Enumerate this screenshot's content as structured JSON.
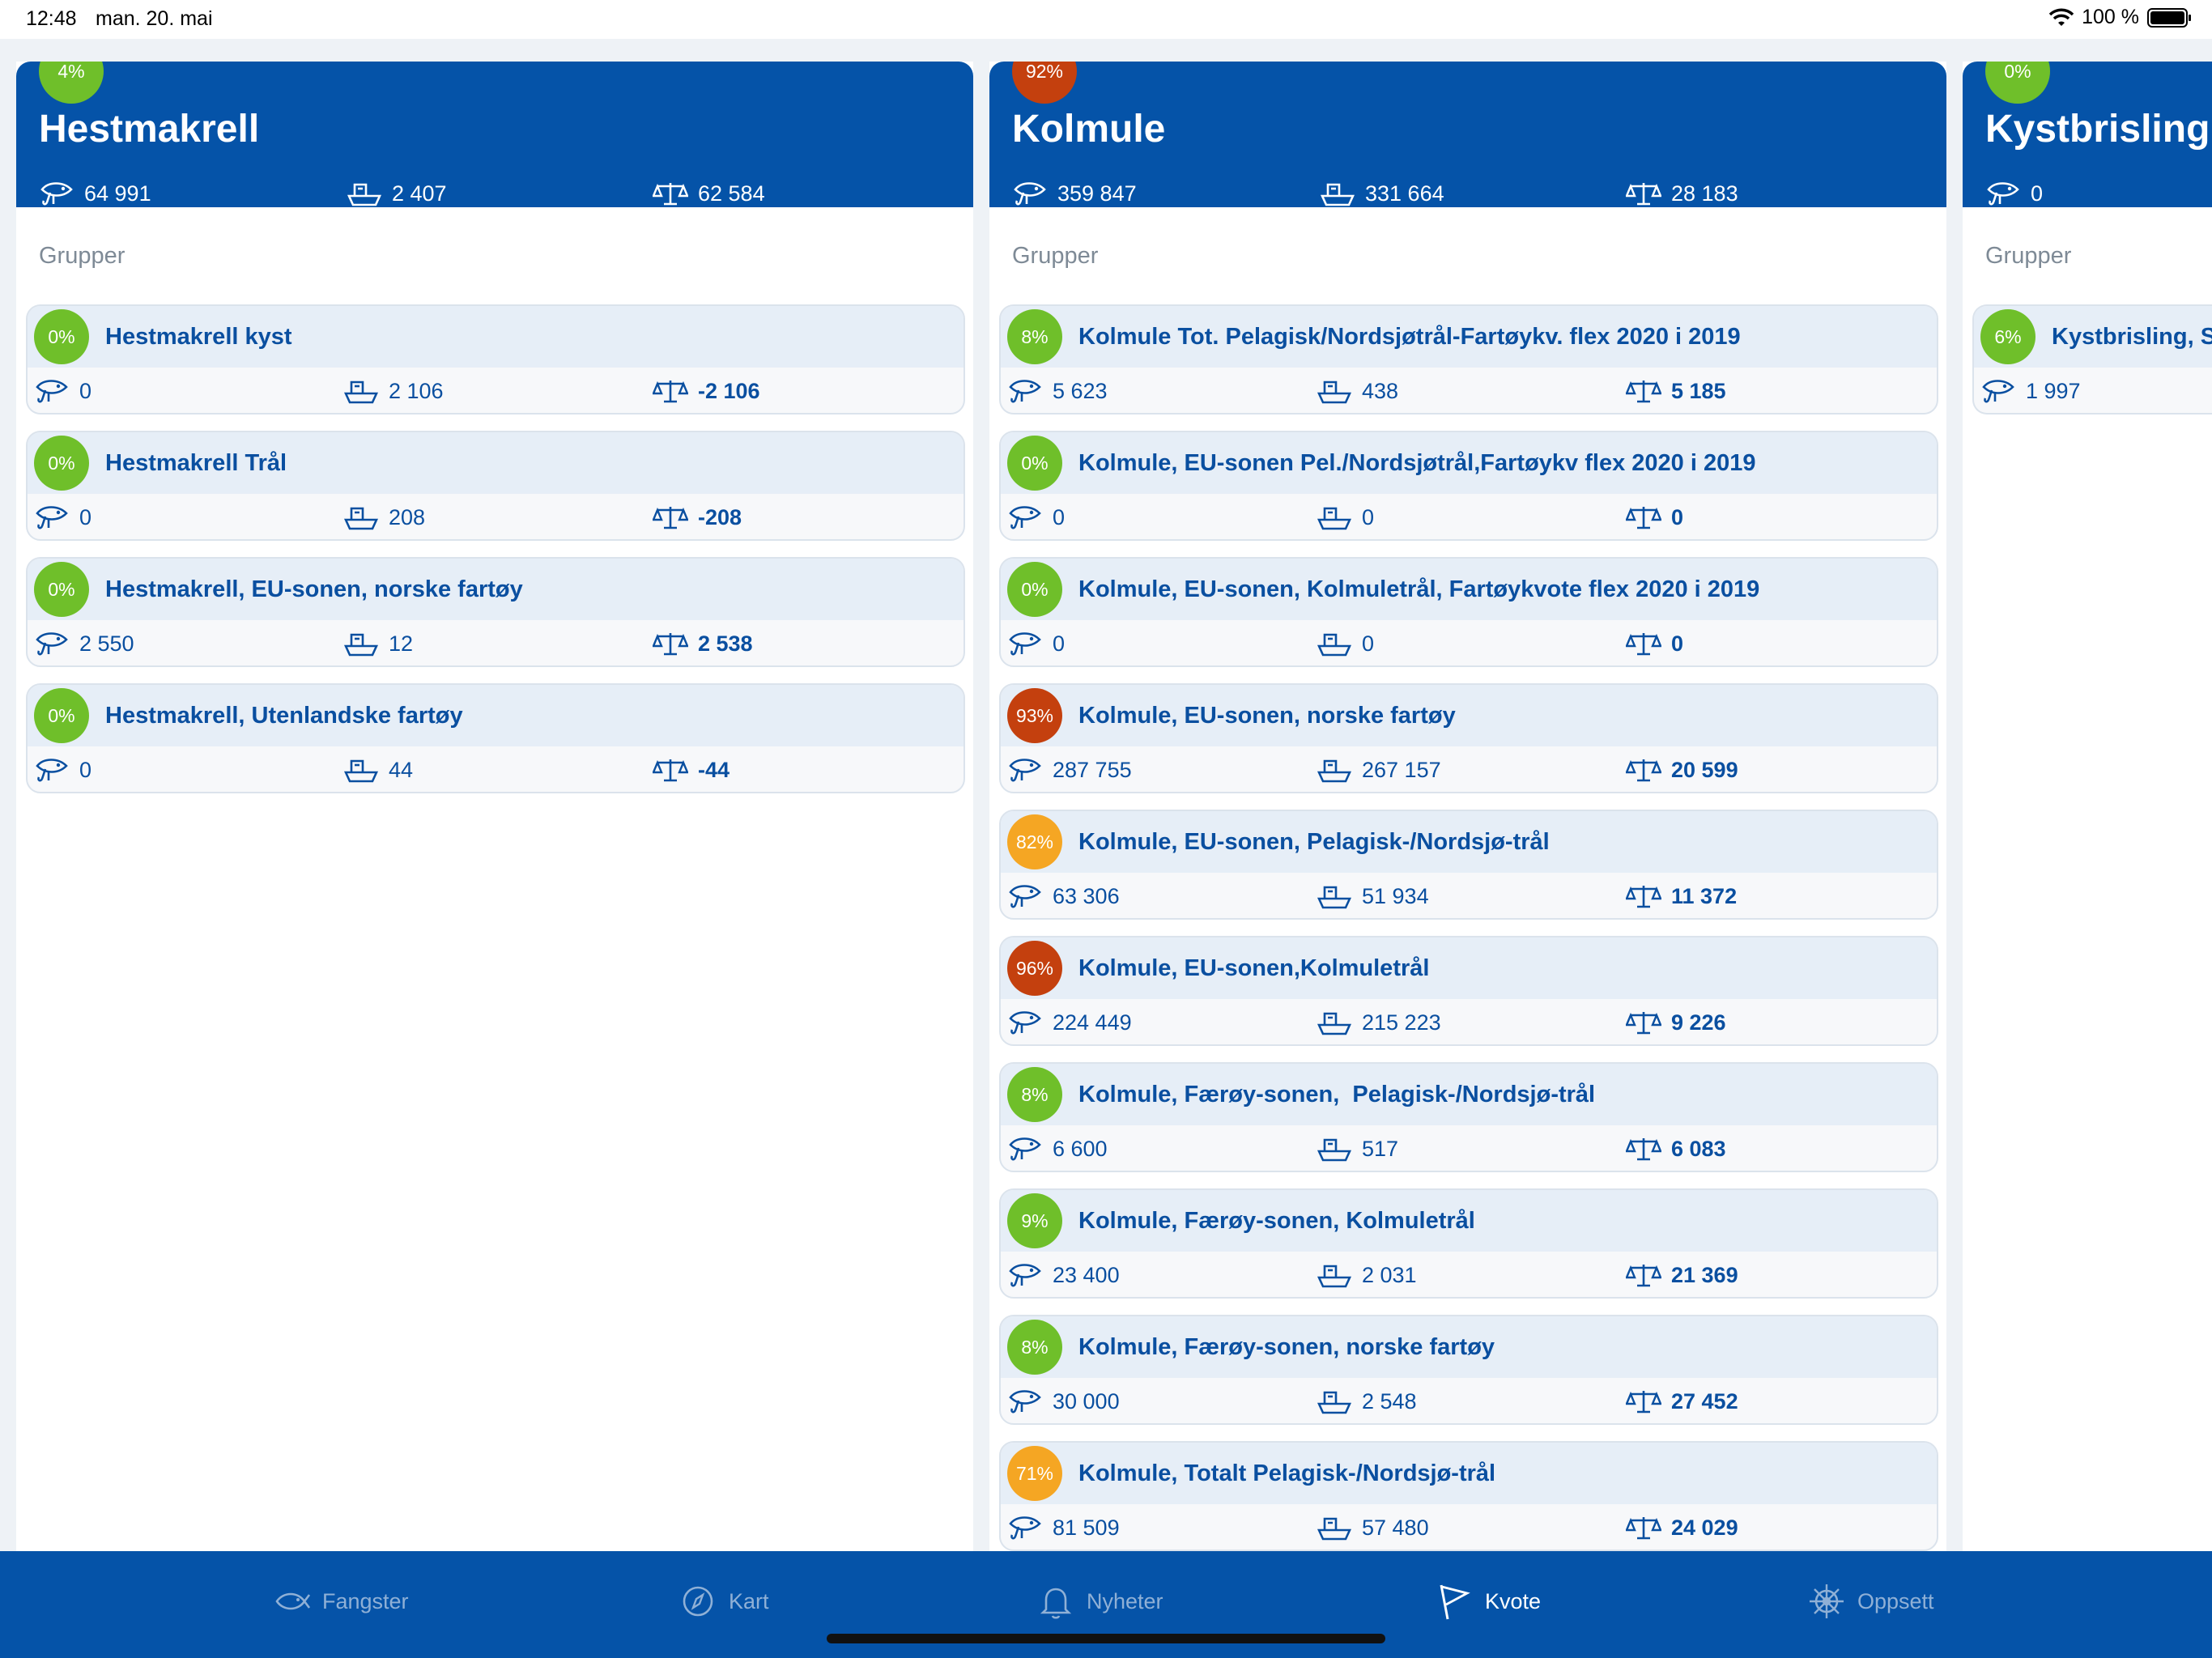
{
  "status_bar": {
    "time": "12:48",
    "date": "man. 20. mai",
    "battery": "100 %"
  },
  "columns": [
    {
      "title": "Hestmakrell",
      "percent": "4%",
      "badge_color": "#6fbf2a",
      "stats": {
        "catch": "64 991",
        "boat": "2 407",
        "rest": "62 584"
      },
      "groups_label": "Grupper",
      "groups": [
        {
          "name": "Hestmakrell kyst",
          "percent": "0%",
          "color": "#6fbf2a",
          "catch": "0",
          "boat": "2 106",
          "rest": "-2 106"
        },
        {
          "name": "Hestmakrell Trål",
          "percent": "0%",
          "color": "#6fbf2a",
          "catch": "0",
          "boat": "208",
          "rest": "-208"
        },
        {
          "name": "Hestmakrell, EU-sonen, norske fartøy",
          "percent": "0%",
          "color": "#6fbf2a",
          "catch": "2 550",
          "boat": "12",
          "rest": "2 538"
        },
        {
          "name": "Hestmakrell, Utenlandske fartøy",
          "percent": "0%",
          "color": "#6fbf2a",
          "catch": "0",
          "boat": "44",
          "rest": "-44"
        }
      ]
    },
    {
      "title": "Kolmule",
      "percent": "92%",
      "badge_color": "#c4400e",
      "stats": {
        "catch": "359 847",
        "boat": "331 664",
        "rest": "28 183"
      },
      "groups_label": "Grupper",
      "groups": [
        {
          "name": "Kolmule Tot. Pelagisk/Nordsjøtrål-Fartøykv. flex 2020 i 2019",
          "percent": "8%",
          "color": "#6fbf2a",
          "catch": "5 623",
          "boat": "438",
          "rest": "5 185"
        },
        {
          "name": "Kolmule, EU-sonen Pel./Nordsjøtrål,Fartøykv flex 2020 i 2019",
          "percent": "0%",
          "color": "#6fbf2a",
          "catch": "0",
          "boat": "0",
          "rest": "0"
        },
        {
          "name": "Kolmule, EU-sonen, Kolmuletrål, Fartøykvote flex 2020 i 2019",
          "percent": "0%",
          "color": "#6fbf2a",
          "catch": "0",
          "boat": "0",
          "rest": "0"
        },
        {
          "name": "Kolmule, EU-sonen, norske fartøy",
          "percent": "93%",
          "color": "#c4400e",
          "catch": "287 755",
          "boat": "267 157",
          "rest": "20 599"
        },
        {
          "name": "Kolmule, EU-sonen, Pelagisk-/Nordsjø-trål",
          "percent": "82%",
          "color": "#f5a623",
          "catch": "63 306",
          "boat": "51 934",
          "rest": "11 372"
        },
        {
          "name": "Kolmule, EU-sonen,Kolmuletrål",
          "percent": "96%",
          "color": "#c4400e",
          "catch": "224 449",
          "boat": "215 223",
          "rest": "9 226"
        },
        {
          "name": "Kolmule, Færøy-sonen,  Pelagisk-/Nordsjø-trål",
          "percent": "8%",
          "color": "#6fbf2a",
          "catch": "6 600",
          "boat": "517",
          "rest": "6 083"
        },
        {
          "name": "Kolmule, Færøy-sonen, Kolmuletrål",
          "percent": "9%",
          "color": "#6fbf2a",
          "catch": "23 400",
          "boat": "2 031",
          "rest": "21 369"
        },
        {
          "name": "Kolmule, Færøy-sonen, norske fartøy",
          "percent": "8%",
          "color": "#6fbf2a",
          "catch": "30 000",
          "boat": "2 548",
          "rest": "27 452"
        },
        {
          "name": "Kolmule, Totalt Pelagisk-/Nordsjø-trål",
          "percent": "71%",
          "color": "#f5a623",
          "catch": "81 509",
          "boat": "57 480",
          "rest": "24 029"
        }
      ]
    },
    {
      "title": "Kystbrisling",
      "percent": "0%",
      "badge_color": "#6fbf2a",
      "stats": {
        "catch": "0"
      },
      "groups_label": "Grupper",
      "groups": [
        {
          "name": "Kystbrisling, S",
          "percent": "6%",
          "color": "#6fbf2a",
          "catch": "1 997"
        }
      ]
    }
  ],
  "tabs": [
    {
      "label": "Fangster",
      "icon": "fish-icon",
      "active": false
    },
    {
      "label": "Kart",
      "icon": "compass-icon",
      "active": false
    },
    {
      "label": "Nyheter",
      "icon": "bell-icon",
      "active": false
    },
    {
      "label": "Kvote",
      "icon": "flag-icon",
      "active": true
    },
    {
      "label": "Oppsett",
      "icon": "ship-wheel-icon",
      "active": false
    }
  ]
}
